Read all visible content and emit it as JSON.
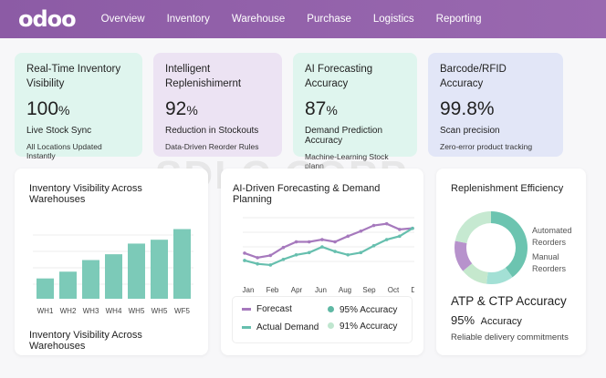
{
  "nav": {
    "logo": "odoo",
    "items": [
      "Overview",
      "Inventory",
      "Warehouse",
      "Purchase",
      "Logistics",
      "Reporting"
    ]
  },
  "cards": [
    {
      "title": "Real-Time Inventory Visibility",
      "value": "100",
      "unit": "%",
      "line1": "Live Stock Sync",
      "line2": "All Locations Updated Instantly",
      "bg": "#dff5ee"
    },
    {
      "title": "Intelligent Replenishimernt",
      "value": "92",
      "unit": "%",
      "line1": "Reduction in Stockouts",
      "line2": "Data-Driven Reorder Rules",
      "bg": "#ece3f3"
    },
    {
      "title": "AI Forecasting Accuracy",
      "value": "87",
      "unit": "%",
      "line1": "Demand Prediction Accuracy",
      "line2": "Machine-Learning Stock plann",
      "bg": "#dff5ee"
    },
    {
      "title": "Barcode/RFID Accuracy",
      "value": "99.8%",
      "unit": "",
      "line1": "Scan precision",
      "line2": "Zero-error product tracking",
      "bg": "#e2e6f7"
    }
  ],
  "watermark": "SDLC CORP",
  "chart_data": [
    {
      "type": "bar",
      "title": "Inventory Visibility Across Warehouses",
      "caption": "Inventory Visibility Across Warehouses",
      "categories": [
        "WH1",
        "WH2",
        "WH3",
        "WH4",
        "WH5",
        "WH5",
        "WF5"
      ],
      "values": [
        21,
        28,
        40,
        46,
        57,
        61,
        72
      ],
      "ylim": [
        0,
        80
      ],
      "grid": true,
      "color": "#7ccab8"
    },
    {
      "type": "line",
      "title": "AI-Driven Forecasting & Demand Planning",
      "tick_labels": [
        "Jan",
        "Feb",
        "Apr",
        "Jun",
        "Aug",
        "Sep",
        "Oct",
        "Dec"
      ],
      "ylim": [
        0,
        100
      ],
      "grid": true,
      "series": [
        {
          "name": "Forecast",
          "color": "#a679bd",
          "values": [
            34,
            26,
            30,
            44,
            54,
            54,
            58,
            54,
            64,
            73,
            83,
            86,
            76,
            78
          ],
          "accuracy": "95% Accuracy",
          "dot": "#5fb8a4"
        },
        {
          "name": "Actual Demand",
          "color": "#66bfae",
          "values": [
            21,
            15,
            13,
            23,
            31,
            35,
            45,
            37,
            31,
            35,
            47,
            58,
            64,
            78
          ],
          "accuracy": "91% Accuracy",
          "dot": "#bfe6cf"
        }
      ]
    },
    {
      "type": "pie",
      "title": "Replenishment Efficiency",
      "labels": [
        "Automated Reorders",
        "Manual Reorders"
      ],
      "slices": [
        {
          "value": 40,
          "color": "#6cc4b0"
        },
        {
          "value": 12,
          "color": "#a3e0d5"
        },
        {
          "value": 12,
          "color": "#c5e8cd"
        },
        {
          "value": 14,
          "color": "#b792cc"
        },
        {
          "value": 22,
          "color": "#c6e9d1"
        }
      ]
    }
  ],
  "atp": {
    "title": "ATP & CTP Accuracy",
    "value": "95%",
    "label": "Accuracy",
    "note": "Reliable delivery commitments"
  }
}
